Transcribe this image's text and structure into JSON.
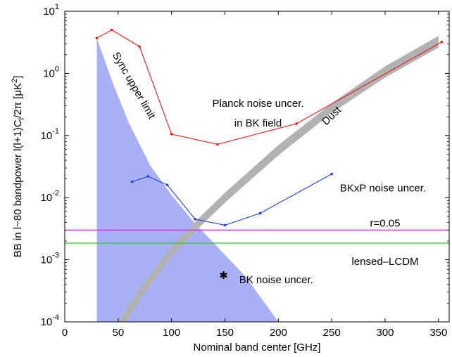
{
  "chart_data": {
    "type": "line",
    "xlabel": "Nominal band center [GHz]",
    "ylabel": "BB in l~80 bandpower l(l+1)C",
    "ylabel_sub": "l",
    "ylabel_tail": "/2π [μK",
    "ylabel_sup": "2",
    "ylabel_end": "]",
    "xlim": [
      0,
      360
    ],
    "ylim": [
      0.0001,
      10
    ],
    "yscale": "log",
    "x_ticks": [
      0,
      50,
      100,
      150,
      200,
      250,
      300,
      350
    ],
    "y_ticks": [
      {
        "base": "10",
        "exp": "-4",
        "value": 0.0001
      },
      {
        "base": "10",
        "exp": "-3",
        "value": 0.001
      },
      {
        "base": "10",
        "exp": "-2",
        "value": 0.01
      },
      {
        "base": "10",
        "exp": "-1",
        "value": 0.1
      },
      {
        "base": "10",
        "exp": "0",
        "value": 1
      },
      {
        "base": "10",
        "exp": "1",
        "value": 10
      }
    ],
    "colors": {
      "planck": "#e8191a",
      "bkxp": "#1f3fd6",
      "r005": "#e020e0",
      "lensed": "#22cc22",
      "sync": "#aab0f5",
      "dust": "#b2b2b2",
      "bk": "#000000"
    },
    "series": [
      {
        "name": "Planck noise uncer.",
        "x": [
          30,
          44,
          70,
          100,
          143,
          217,
          353
        ],
        "y": [
          3.7,
          5.0,
          2.7,
          0.105,
          0.072,
          0.155,
          3.2
        ]
      },
      {
        "name": "BKxP noise uncer.",
        "x": [
          63,
          78,
          96,
          122,
          150,
          183,
          250
        ],
        "y": [
          0.018,
          0.022,
          0.016,
          0.0045,
          0.0036,
          0.0056,
          0.024
        ]
      }
    ],
    "hlines": [
      {
        "name": "r=0.05",
        "y": 0.003
      },
      {
        "name": "lensed–LCDM",
        "y": 0.00185
      }
    ],
    "sync_upper_limit": {
      "name": "Sync upper limit",
      "x": [
        30,
        45,
        60,
        80,
        100,
        120,
        150,
        170,
        200
      ],
      "y": [
        3.7,
        0.7,
        0.16,
        0.033,
        0.011,
        0.0042,
        0.0012,
        0.00052,
        0.0001
      ]
    },
    "dust": {
      "name": "Dust",
      "x": [
        50,
        60,
        75,
        100,
        125,
        150,
        200,
        250,
        300,
        350
      ],
      "y": [
        0.0001,
        0.00019,
        0.00045,
        0.0016,
        0.0046,
        0.012,
        0.07,
        0.33,
        1.3,
        4.0
      ],
      "y_low": [
        6.5e-05,
        0.00012,
        0.0003,
        0.0011,
        0.0032,
        0.0083,
        0.048,
        0.23,
        0.86,
        2.6
      ]
    },
    "bk_point": {
      "name": "BK noise uncer.",
      "x": 150,
      "y": 0.00055
    },
    "annotations": {
      "planck_line1": "Planck noise uncer.",
      "planck_line2": "in BK field",
      "bkxp": "BKxP noise uncer.",
      "r005": "r=0.05",
      "lensed": "lensed–LCDM",
      "dust": "Dust",
      "sync": "Sync upper limit",
      "bk": "BK noise uncer."
    }
  }
}
